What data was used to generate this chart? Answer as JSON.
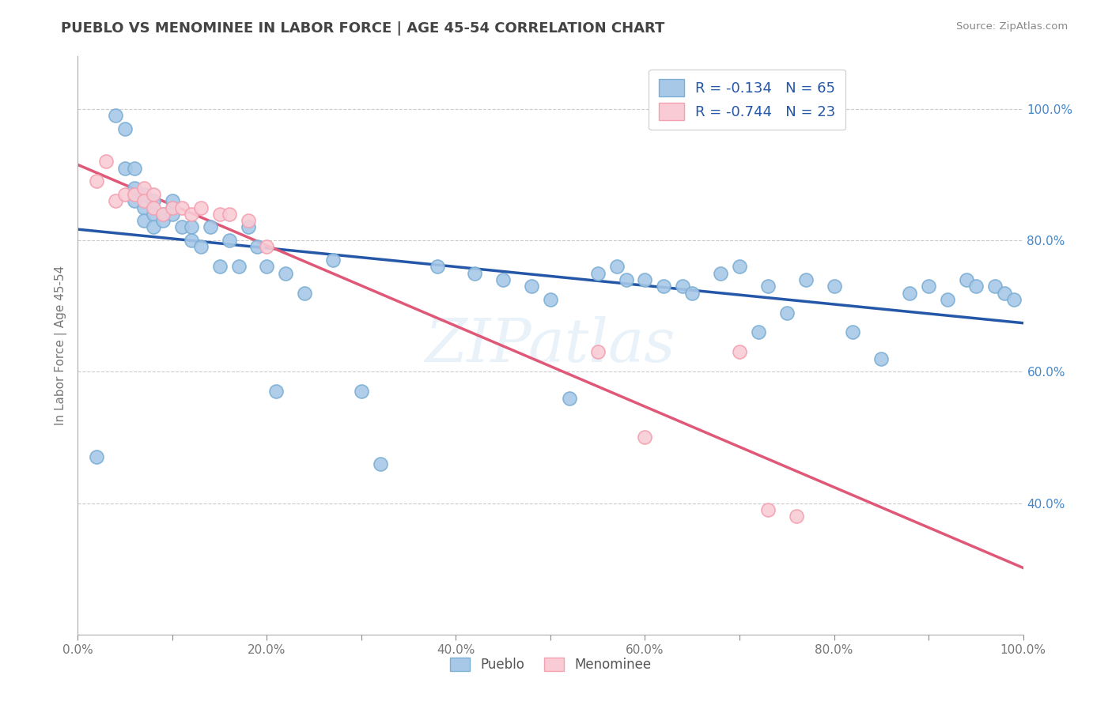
{
  "title": "PUEBLO VS MENOMINEE IN LABOR FORCE | AGE 45-54 CORRELATION CHART",
  "source_text": "Source: ZipAtlas.com",
  "ylabel": "In Labor Force | Age 45-54",
  "pueblo_R": -0.134,
  "pueblo_N": 65,
  "menominee_R": -0.744,
  "menominee_N": 23,
  "pueblo_color": "#a8c8e8",
  "pueblo_edge_color": "#7bafd4",
  "menominee_color": "#f9ccd5",
  "menominee_edge_color": "#f4a0b0",
  "pueblo_line_color": "#2457a8",
  "menominee_line_color": "#e05878",
  "legend_text_color": "#2457a8",
  "tick_color_y": "#4488cc",
  "tick_color_x": "#777777",
  "xlim": [
    0.0,
    1.0
  ],
  "ylim": [
    0.2,
    1.08
  ],
  "pueblo_x": [
    0.02,
    0.04,
    0.05,
    0.05,
    0.06,
    0.06,
    0.06,
    0.07,
    0.07,
    0.07,
    0.08,
    0.08,
    0.08,
    0.09,
    0.09,
    0.1,
    0.1,
    0.1,
    0.11,
    0.12,
    0.12,
    0.13,
    0.14,
    0.15,
    0.16,
    0.17,
    0.18,
    0.19,
    0.2,
    0.21,
    0.22,
    0.24,
    0.27,
    0.3,
    0.32,
    0.38,
    0.42,
    0.45,
    0.48,
    0.5,
    0.52,
    0.55,
    0.57,
    0.58,
    0.6,
    0.62,
    0.64,
    0.65,
    0.68,
    0.7,
    0.72,
    0.73,
    0.75,
    0.77,
    0.8,
    0.82,
    0.85,
    0.88,
    0.9,
    0.92,
    0.94,
    0.95,
    0.97,
    0.98,
    0.99
  ],
  "pueblo_y": [
    0.47,
    0.99,
    0.91,
    0.97,
    0.91,
    0.88,
    0.86,
    0.87,
    0.85,
    0.83,
    0.86,
    0.84,
    0.82,
    0.84,
    0.83,
    0.85,
    0.84,
    0.86,
    0.82,
    0.82,
    0.8,
    0.79,
    0.82,
    0.76,
    0.8,
    0.76,
    0.82,
    0.79,
    0.76,
    0.57,
    0.75,
    0.72,
    0.77,
    0.57,
    0.46,
    0.76,
    0.75,
    0.74,
    0.73,
    0.71,
    0.56,
    0.75,
    0.76,
    0.74,
    0.74,
    0.73,
    0.73,
    0.72,
    0.75,
    0.76,
    0.66,
    0.73,
    0.69,
    0.74,
    0.73,
    0.66,
    0.62,
    0.72,
    0.73,
    0.71,
    0.74,
    0.73,
    0.73,
    0.72,
    0.71
  ],
  "menominee_x": [
    0.02,
    0.03,
    0.04,
    0.05,
    0.06,
    0.07,
    0.07,
    0.08,
    0.08,
    0.09,
    0.1,
    0.11,
    0.12,
    0.13,
    0.15,
    0.16,
    0.18,
    0.2,
    0.55,
    0.6,
    0.7,
    0.73,
    0.76
  ],
  "menominee_y": [
    0.89,
    0.92,
    0.86,
    0.87,
    0.87,
    0.88,
    0.86,
    0.87,
    0.85,
    0.84,
    0.85,
    0.85,
    0.84,
    0.85,
    0.84,
    0.84,
    0.83,
    0.79,
    0.63,
    0.5,
    0.63,
    0.39,
    0.38
  ],
  "xtick_vals": [
    0.0,
    0.1,
    0.2,
    0.3,
    0.4,
    0.5,
    0.6,
    0.7,
    0.8,
    0.9,
    1.0
  ],
  "xtick_labels": [
    "0.0%",
    "",
    "20.0%",
    "",
    "40.0%",
    "",
    "60.0%",
    "",
    "80.0%",
    "",
    "100.0%"
  ],
  "ytick_vals": [
    0.4,
    0.6,
    0.8,
    1.0
  ],
  "ytick_labels": [
    "40.0%",
    "60.0%",
    "80.0%",
    "100.0%"
  ],
  "grid_ytick_vals": [
    0.4,
    0.6,
    0.8,
    1.0
  ],
  "background_color": "#ffffff",
  "grid_color": "#cccccc",
  "watermark_text": "ZIPatlas",
  "title_fontsize": 13,
  "label_fontsize": 11,
  "tick_fontsize": 11,
  "legend_fontsize": 13
}
